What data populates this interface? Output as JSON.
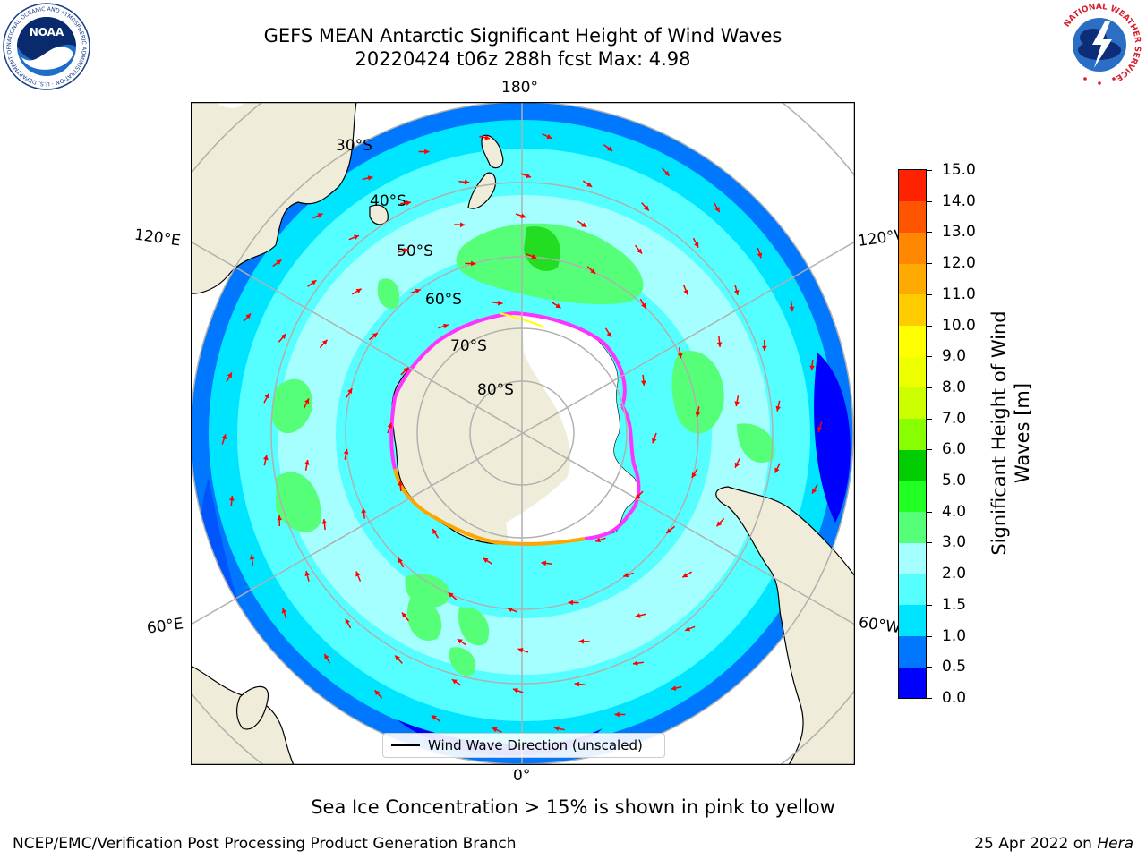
{
  "header": {
    "title_line1": "GEFS MEAN Antarctic Significant Height of Wind Waves",
    "title_line2": "20220424 t06z 288h fcst   Max: 4.98"
  },
  "logos": {
    "noaa_text": "NOAA",
    "noaa_ring_text": "NATIONAL OCEANIC AND ATMOSPHERIC ADMINISTRATION · U.S. DEPARTMENT OF COMMERCE",
    "nws_ring_text": "NATIONAL WEATHER SERVICE"
  },
  "map": {
    "projection": "south-polar-stereographic",
    "longitude_labels": {
      "top": "180°",
      "bottom": "0°",
      "upper_left": "120°E",
      "upper_right": "120°W",
      "lower_left": "60°E",
      "lower_right": "60°W"
    },
    "latitude_labels": [
      "30°S",
      "40°S",
      "50°S",
      "60°S",
      "70°S",
      "80°S"
    ],
    "legend_label": "Wind Wave Direction (unscaled)",
    "arrow_color": "#ff0000",
    "land_color": "#efedd9",
    "ice_edge_colors": [
      "#ff33ff",
      "#ffa500",
      "#ffff00"
    ]
  },
  "colorbar": {
    "label": "Significant Height of Wind Waves [m]",
    "ticks": [
      "0.0",
      "0.5",
      "1.0",
      "1.5",
      "2.0",
      "3.0",
      "4.0",
      "5.0",
      "6.0",
      "7.0",
      "8.0",
      "9.0",
      "10.0",
      "11.0",
      "12.0",
      "13.0",
      "14.0",
      "15.0"
    ],
    "colors": [
      "#0000ff",
      "#0077ff",
      "#00e5ff",
      "#55ffff",
      "#a5ffff",
      "#55ff77",
      "#22ff22",
      "#00cc00",
      "#88ff00",
      "#ccff00",
      "#eeff00",
      "#ffff00",
      "#ffcc00",
      "#ffaa00",
      "#ff8800",
      "#ff5500",
      "#ff2200"
    ]
  },
  "footer": {
    "caption": "Sea Ice Concentration > 15% is shown in pink to yellow",
    "left": "NCEP/EMC/Verification Post Processing Product Generation Branch",
    "right_date": "25 Apr 2022 on",
    "right_host": "Hera"
  }
}
